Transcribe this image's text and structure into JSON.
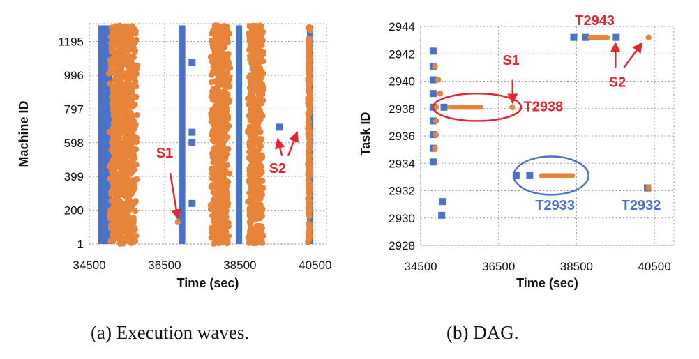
{
  "colors": {
    "blue": "#4a72c9",
    "orange": "#e8843a",
    "red": "#e6262e",
    "grid": "#9a9a9a"
  },
  "captions": {
    "a": "(a)  Execution waves.",
    "b": "(b)  DAG."
  },
  "chart_data": [
    {
      "type": "scatter",
      "panel": "a",
      "xlabel": "Time (sec)",
      "ylabel": "Machine ID",
      "xlim": [
        34500,
        40800
      ],
      "ylim": [
        1,
        1300
      ],
      "x_ticks": [
        "34500",
        "36500",
        "38500",
        "40500"
      ],
      "y_ticks": [
        "1",
        "200",
        "399",
        "598",
        "797",
        "996",
        "1195"
      ],
      "grid": true,
      "series": [
        {
          "color": "blue",
          "marker": "square",
          "bands": [
            {
              "x": [
                34740,
                35100
              ],
              "y": [
                1,
                1290
              ]
            },
            {
              "x": [
                36880,
                37050
              ],
              "y": [
                1,
                1290
              ]
            },
            {
              "x": [
                38390,
                38560
              ],
              "y": [
                1,
                1290
              ]
            },
            {
              "x": [
                40280,
                40450
              ],
              "y": [
                1,
                1290
              ]
            }
          ],
          "points": [
            [
              37230,
              1070
            ],
            [
              37230,
              660
            ],
            [
              37230,
              600
            ],
            [
              37230,
              240
            ],
            [
              38850,
              1040
            ],
            [
              38850,
              150
            ],
            [
              39550,
              690
            ]
          ]
        },
        {
          "color": "orange",
          "marker": "circle",
          "clusters": [
            {
              "x": [
                35000,
                35800
              ],
              "y": [
                1,
                1290
              ],
              "n": 900
            },
            {
              "x": [
                37700,
                38250
              ],
              "y": [
                1,
                1290
              ],
              "n": 650
            },
            {
              "x": [
                38700,
                39150
              ],
              "y": [
                1,
                1290
              ],
              "n": 550
            },
            {
              "x": [
                40300,
                40380
              ],
              "y": [
                1,
                1290
              ],
              "n": 180
            }
          ],
          "points": [
            [
              36850,
              130
            ]
          ]
        }
      ],
      "annotations": [
        {
          "text": "S1",
          "at": [
            36500,
            510
          ],
          "arrows": [
            [
              [
                36650,
                420
              ],
              [
                36850,
                150
              ]
            ]
          ]
        },
        {
          "text": "S2",
          "at": [
            39500,
            420
          ],
          "arrows": [
            [
              [
                39620,
                520
              ],
              [
                39500,
                620
              ]
            ],
            [
              [
                39780,
                520
              ],
              [
                40020,
                660
              ]
            ]
          ]
        }
      ]
    },
    {
      "type": "scatter",
      "panel": "b",
      "xlabel": "Time (sec)",
      "ylabel": "Task ID",
      "xlim": [
        34500,
        41000
      ],
      "ylim": [
        2928,
        2944
      ],
      "x_ticks": [
        "34500",
        "36500",
        "38500",
        "40500"
      ],
      "y_ticks": [
        "2928",
        "2930",
        "2932",
        "2934",
        "2936",
        "2938",
        "2940",
        "2942",
        "2944"
      ],
      "grid": true,
      "series": [
        {
          "color": "blue",
          "marker": "square",
          "points": [
            [
              34820,
              2942.2
            ],
            [
              34820,
              2941.1
            ],
            [
              34820,
              2940.1
            ],
            [
              34820,
              2939.1
            ],
            [
              34820,
              2938.1
            ],
            [
              34820,
              2937.1
            ],
            [
              34820,
              2936.1
            ],
            [
              34820,
              2935.1
            ],
            [
              34820,
              2934.1
            ],
            [
              35100,
              2938.1
            ],
            [
              35060,
              2931.2
            ],
            [
              35040,
              2930.2
            ],
            [
              36950,
              2933.1
            ],
            [
              37300,
              2933.1
            ],
            [
              38430,
              2943.2
            ],
            [
              38730,
              2943.2
            ],
            [
              39520,
              2943.2
            ],
            [
              40320,
              2932.2
            ]
          ]
        },
        {
          "color": "orange",
          "marker": "circle",
          "points": [
            [
              34900,
              2938.1
            ],
            [
              34950,
              2940.1
            ],
            [
              35000,
              2939.1
            ],
            [
              34890,
              2936.1
            ],
            [
              34870,
              2935.1
            ],
            [
              34900,
              2937.1
            ],
            [
              34870,
              2941.1
            ],
            [
              36850,
              2938.1
            ],
            [
              40350,
              2943.2
            ],
            [
              40350,
              2932.2
            ]
          ],
          "runs": [
            {
              "x": [
                35250,
                36050
              ],
              "y": 2938.1
            },
            {
              "x": [
                37600,
                38400
              ],
              "y": 2933.1
            },
            {
              "x": [
                38850,
                39300
              ],
              "y": 2943.2
            }
          ]
        }
      ],
      "annotations": [
        {
          "text": "S1",
          "color": "red",
          "at": [
            36820,
            2941.2
          ],
          "arrows": [
            [
              [
                36860,
                2940.1
              ],
              [
                36860,
                2938.4
              ]
            ]
          ]
        },
        {
          "text": "S2",
          "color": "red",
          "at": [
            39550,
            2939.6
          ],
          "arrows": [
            [
              [
                39500,
                2941.0
              ],
              [
                39500,
                2942.8
              ]
            ],
            [
              [
                39720,
                2941.0
              ],
              [
                40180,
                2942.8
              ]
            ]
          ]
        },
        {
          "text": "T2943",
          "color": "red",
          "at": [
            38970,
            2944.1
          ]
        },
        {
          "text": "T2938",
          "color": "red",
          "at": [
            37650,
            2937.8
          ]
        },
        {
          "text": "T2933",
          "color": "blue",
          "at": [
            37950,
            2930.6
          ]
        },
        {
          "text": "T2932",
          "color": "blue",
          "at": [
            40160,
            2930.6
          ]
        }
      ],
      "ellipses": [
        {
          "color": "red",
          "center": [
            35950,
            2938.1
          ],
          "radius": [
            1130,
            1.0
          ]
        },
        {
          "color": "blue",
          "center": [
            37850,
            2933.1
          ],
          "radius": [
            960,
            1.4
          ]
        }
      ]
    }
  ]
}
